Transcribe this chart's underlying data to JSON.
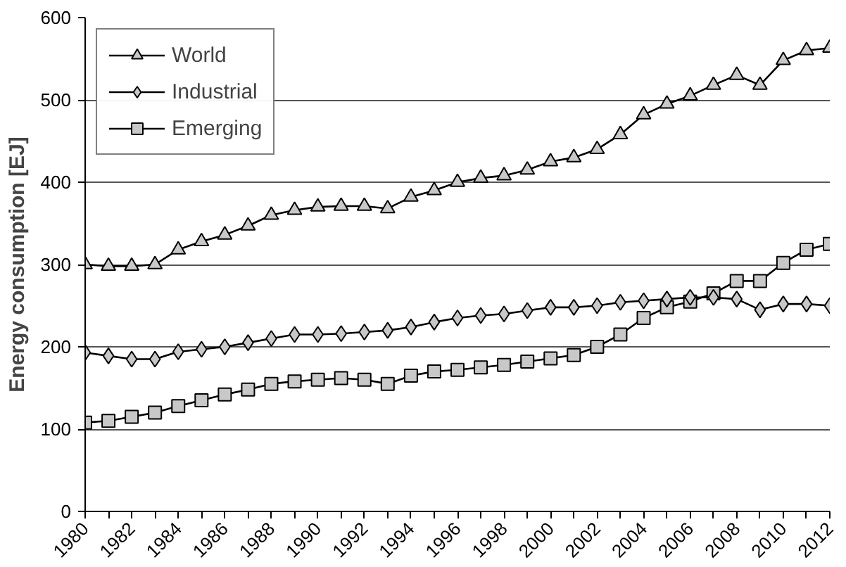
{
  "chart_data": {
    "type": "line",
    "ylabel": "Energy consumption [EJ]",
    "x": [
      1980,
      1981,
      1982,
      1983,
      1984,
      1985,
      1986,
      1987,
      1988,
      1989,
      1990,
      1991,
      1992,
      1993,
      1994,
      1995,
      1996,
      1997,
      1998,
      1999,
      2000,
      2001,
      2002,
      2003,
      2004,
      2005,
      2006,
      2007,
      2008,
      2009,
      2010,
      2011,
      2012
    ],
    "series": [
      {
        "name": "World",
        "color": "#000000",
        "marker": "triangle",
        "values": [
          300,
          298,
          298,
          300,
          318,
          328,
          336,
          347,
          360,
          366,
          370,
          371,
          371,
          368,
          382,
          390,
          400,
          405,
          408,
          415,
          425,
          430,
          440,
          458,
          482,
          495,
          505,
          518,
          530,
          518,
          548,
          560,
          563
        ]
      },
      {
        "name": "Industrial",
        "color": "#000000",
        "marker": "diamond",
        "values": [
          193,
          189,
          185,
          185,
          194,
          197,
          200,
          205,
          210,
          215,
          215,
          216,
          218,
          220,
          224,
          230,
          235,
          238,
          240,
          244,
          248,
          248,
          250,
          254,
          256,
          258,
          260,
          260,
          258,
          245,
          252,
          252,
          250
        ]
      },
      {
        "name": "Emerging",
        "color": "#000000",
        "marker": "square",
        "values": [
          108,
          110,
          115,
          120,
          128,
          135,
          142,
          148,
          155,
          158,
          160,
          162,
          160,
          155,
          165,
          170,
          172,
          175,
          178,
          182,
          186,
          190,
          200,
          215,
          235,
          248,
          255,
          265,
          280,
          280,
          302,
          318,
          325
        ]
      }
    ],
    "xlim": [
      1980,
      2012
    ],
    "xticks": [
      1980,
      {
        "value": 1981,
        "label": null
      },
      1982,
      {
        "value": 1983,
        "label": null
      },
      1984,
      {
        "value": 1985,
        "label": null
      },
      1986,
      {
        "value": 1987,
        "label": null
      },
      1988,
      {
        "value": 1989,
        "label": null
      },
      1990,
      {
        "value": 1991,
        "label": null
      },
      1992,
      {
        "value": 1993,
        "label": null
      },
      1994,
      {
        "value": 1995,
        "label": null
      },
      1996,
      {
        "value": 1997,
        "label": null
      },
      1998,
      {
        "value": 1999,
        "label": null
      },
      2000,
      {
        "value": 2001,
        "label": null
      },
      2002,
      {
        "value": 2003,
        "label": null
      },
      2004,
      {
        "value": 2005,
        "label": null
      },
      2006,
      {
        "value": 2007,
        "label": null
      },
      2008,
      {
        "value": 2009,
        "label": null
      },
      2010,
      {
        "value": 2011,
        "label": null
      },
      2012
    ],
    "ylim": [
      0,
      600
    ],
    "yticks": [
      0,
      100,
      200,
      300,
      400,
      500,
      600
    ],
    "grid": "y",
    "legend": "top left",
    "line_style": "solid"
  }
}
